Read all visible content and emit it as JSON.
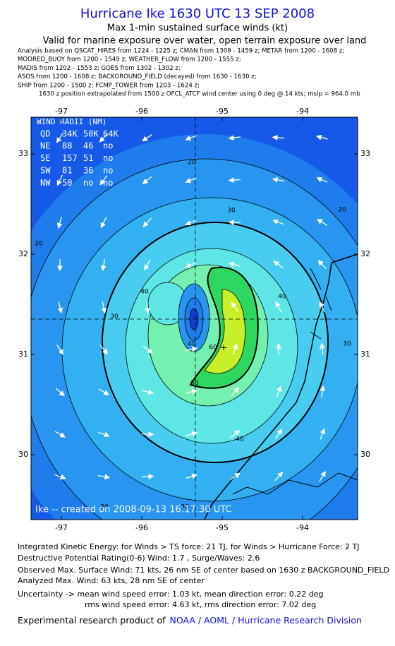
{
  "header": {
    "title": "Hurricane Ike 1630 UTC 13 SEP 2008",
    "subtitle": "Max 1-min sustained surface winds (kt)",
    "validity": "Valid for marine exposure over water, open terrain exposure over land",
    "sources": [
      "Analysis based on  QSCAT_HIRES from 1224 - 1225 z;  CMAN from 1309 - 1459 z;  METAR from 1200 - 1608 z;",
      "MOORED_BUOY from 1200 - 1549 z;  WEATHER_FLOW from 1200 - 1555 z;",
      "MADIS from 1202 - 1553 z;  GOES from 1302 - 1302 z;",
      "ASOS from 1200 - 1608 z;  BACKGROUND_FIELD (decayed) from 1630 - 1630 z;",
      "SHIP from 1200 - 1500 z;  FCMP_TOWER from 1203 - 1624 z;",
      "1630 z position extrapolated from 1500 z OFCL_ATCF wind center using 0 deg @ 14 kts; mslp = 964.0 mb"
    ]
  },
  "wind_radii": {
    "title": "WIND RADII (NM)",
    "columns": [
      "QD",
      "34K",
      "50K",
      "64K"
    ],
    "rows": [
      [
        "NE",
        "88",
        "46",
        "no"
      ],
      [
        "SE",
        "157",
        "51",
        "no"
      ],
      [
        "SW",
        "81",
        "36",
        "no"
      ],
      [
        "NW",
        "50",
        "no",
        "no"
      ]
    ]
  },
  "axes": {
    "x_ticks": [
      -97,
      -96,
      -95,
      -94
    ],
    "y_ticks": [
      33,
      32,
      31,
      30
    ]
  },
  "contour_labels": [
    "20",
    "20",
    "20",
    "30",
    "30",
    "30",
    "40",
    "40",
    "40",
    "40",
    "50",
    "60",
    "20",
    "30"
  ],
  "map_credit": "Ike -- created on 2008-09-13 16:17:30 UTC",
  "footer": {
    "lines": [
      "Integrated Kinetic Energy:  for Winds > TS force: 21 TJ,  for Winds > Hurricane Force: 2 TJ",
      "Destructive Potential Rating(0-6)   Wind: 1.7 , Surge/Waves: 2.6",
      "Observed Max. Surface Wind: 71 kts, 26 nm SE of center based on 1630 z BACKGROUND_FIELD",
      "Analyzed Max. Wind: 63 kts, 28 nm SE of center",
      "Uncertainty -> mean wind speed error: 1.03 kt,   mean direction error: 0.22 deg",
      "rms wind speed error: 4.63 kt,   rms direction error: 7.02 deg"
    ],
    "credit_prefix": "Experimental research product of",
    "credit_link": "NOAA / AOML / Hurricane Research Division"
  }
}
